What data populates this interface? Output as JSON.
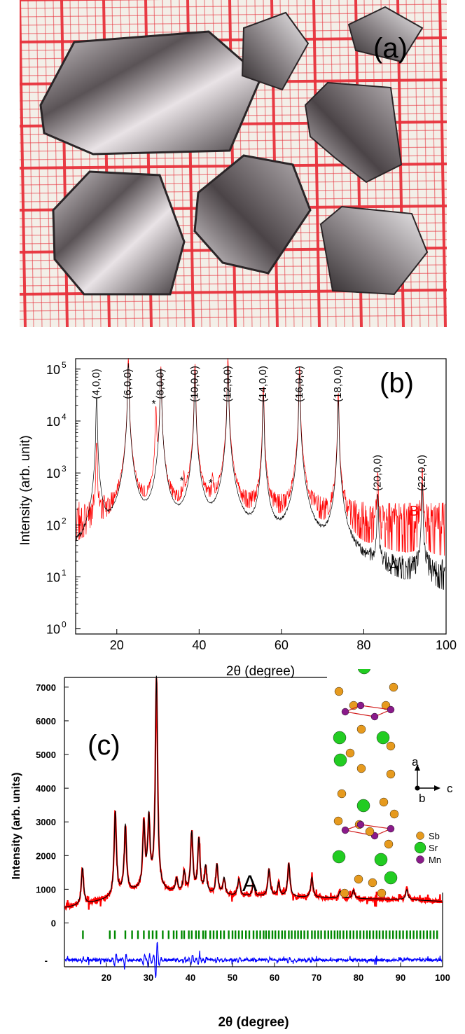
{
  "panel_a": {
    "label": "(a)",
    "description_colors": {
      "grid_line": "#e8323c",
      "paper": "#f4efe6",
      "crystal_dark": "#3a3436",
      "crystal_light": "#d9d4d6"
    }
  },
  "chart_data": [
    {
      "type": "line",
      "panel_label": "(b)",
      "xlabel": "2θ (degree)",
      "ylabel": "Intensity (arb. unit)",
      "xlim": [
        10,
        100
      ],
      "ylim_log10": [
        -0.1,
        5.2
      ],
      "yscale": "log",
      "x_ticks": [
        20,
        40,
        60,
        80,
        100
      ],
      "y_ticks": [
        {
          "exp": 0,
          "label": "10",
          "sup": "0"
        },
        {
          "exp": 1,
          "label": "10",
          "sup": "1"
        },
        {
          "exp": 2,
          "label": "10",
          "sup": "2"
        },
        {
          "exp": 3,
          "label": "10",
          "sup": "3"
        },
        {
          "exp": 4,
          "label": "10",
          "sup": "4"
        },
        {
          "exp": 5,
          "label": "10",
          "sup": "5"
        }
      ],
      "series": [
        {
          "name": "B",
          "color": "#ff0000",
          "baseline": 150,
          "noise_floor": 20,
          "peaks": [
            {
              "x": 15.1,
              "y": 3000
            },
            {
              "x": 22.8,
              "y": 130000
            },
            {
              "x": 29.5,
              "y": 15000
            },
            {
              "x": 30.7,
              "y": 90000
            },
            {
              "x": 36.3,
              "y": 500
            },
            {
              "x": 39.0,
              "y": 100000
            },
            {
              "x": 43.3,
              "y": 450
            },
            {
              "x": 47.0,
              "y": 130000
            },
            {
              "x": 55.6,
              "y": 38000
            },
            {
              "x": 64.4,
              "y": 90000
            },
            {
              "x": 73.8,
              "y": 28000
            },
            {
              "x": 83.4,
              "y": 750
            },
            {
              "x": 94.2,
              "y": 850
            }
          ]
        },
        {
          "name": "A",
          "color": "#000000",
          "baseline": 10,
          "noise_floor": 0.9,
          "peaks": [
            {
              "x": 15.1,
              "y": 22000
            },
            {
              "x": 22.8,
              "y": 100000
            },
            {
              "x": 30.7,
              "y": 80000
            },
            {
              "x": 39.0,
              "y": 70000
            },
            {
              "x": 47.0,
              "y": 90000
            },
            {
              "x": 55.6,
              "y": 25000
            },
            {
              "x": 64.4,
              "y": 60000
            },
            {
              "x": 73.8,
              "y": 20000
            },
            {
              "x": 83.4,
              "y": 300
            },
            {
              "x": 94.2,
              "y": 500
            }
          ]
        }
      ],
      "series_labels": [
        {
          "text": "B",
          "x": 94.5,
          "y": 150,
          "color": "#ff0000"
        },
        {
          "text": "A",
          "x": 89.5,
          "y": 13,
          "color": "#000000"
        }
      ],
      "annotations": [
        {
          "text": "(4,0,0)",
          "x": 15.1
        },
        {
          "text": "(6,0,0)",
          "x": 22.8
        },
        {
          "text": "(8,0,0)",
          "x": 30.7
        },
        {
          "text": "(10,0,0)",
          "x": 39.0
        },
        {
          "text": "(12,0,0)",
          "x": 47.0
        },
        {
          "text": "(14,0,0)",
          "x": 55.6
        },
        {
          "text": "(16,0,0)",
          "x": 64.4
        },
        {
          "text": "(18,0,0)",
          "x": 73.8
        },
        {
          "text": "(20,0,0)",
          "x": 83.4
        },
        {
          "text": "(22,0,0)",
          "x": 94.2
        }
      ],
      "stars": [
        {
          "text": "*",
          "x": 29.5,
          "y": 15000
        },
        {
          "text": "*",
          "x": 36.3,
          "y": 500
        },
        {
          "text": "*",
          "x": 43.3,
          "y": 450
        }
      ]
    },
    {
      "type": "line",
      "panel_label": "(c)",
      "sample_label": "A",
      "xlabel": "2θ (degree)",
      "ylabel": "Intensity (arb. units)",
      "xlim": [
        10,
        100
      ],
      "ylim": [
        -1300,
        7600
      ],
      "x_ticks": [
        20,
        30,
        40,
        50,
        60,
        70,
        80,
        90,
        100
      ],
      "y_ticks": [
        {
          "v": 0,
          "label": "0"
        },
        {
          "v": 1000,
          "label": "1000"
        },
        {
          "v": 2000,
          "label": "2000"
        },
        {
          "v": 3000,
          "label": "3000"
        },
        {
          "v": 4000,
          "label": "4000"
        },
        {
          "v": 5000,
          "label": "5000"
        },
        {
          "v": 6000,
          "label": "6000"
        },
        {
          "v": 7000,
          "label": "7000"
        }
      ],
      "blank_tick": {
        "v": -1100,
        "label": "-"
      },
      "observed_color": "#ff0000",
      "calculated_color": "#000000",
      "difference_color": "#0000ff",
      "bragg_color": "#008800",
      "background": [
        [
          10,
          450
        ],
        [
          15,
          550
        ],
        [
          20,
          700
        ],
        [
          25,
          900
        ],
        [
          30,
          1000
        ],
        [
          35,
          900
        ],
        [
          40,
          850
        ],
        [
          50,
          800
        ],
        [
          60,
          780
        ],
        [
          70,
          750
        ],
        [
          80,
          720
        ],
        [
          90,
          700
        ],
        [
          100,
          640
        ]
      ],
      "peaks": [
        {
          "x": 14.3,
          "y": 1100
        },
        {
          "x": 22.1,
          "y": 2500
        },
        {
          "x": 24.5,
          "y": 2000
        },
        {
          "x": 28.9,
          "y": 1900
        },
        {
          "x": 30.1,
          "y": 2000
        },
        {
          "x": 31.9,
          "y": 6300
        },
        {
          "x": 36.7,
          "y": 400
        },
        {
          "x": 38.5,
          "y": 600
        },
        {
          "x": 40.3,
          "y": 1800
        },
        {
          "x": 42.0,
          "y": 1600
        },
        {
          "x": 43.6,
          "y": 800
        },
        {
          "x": 46.3,
          "y": 900
        },
        {
          "x": 48.0,
          "y": 500
        },
        {
          "x": 51.5,
          "y": 500
        },
        {
          "x": 55.0,
          "y": 350
        },
        {
          "x": 58.7,
          "y": 800
        },
        {
          "x": 61.0,
          "y": 400
        },
        {
          "x": 63.4,
          "y": 1000
        },
        {
          "x": 68.9,
          "y": 600
        },
        {
          "x": 75.6,
          "y": 200
        },
        {
          "x": 78.8,
          "y": 250
        },
        {
          "x": 91.5,
          "y": 300
        }
      ],
      "bragg_y": -350,
      "bragg_ticks": [
        14.4,
        20.8,
        22.0,
        24.5,
        26.1,
        27.5,
        28.9,
        30.1,
        31.0,
        31.9,
        33.4,
        34.8,
        36.0,
        36.7,
        37.9,
        38.5,
        39.6,
        40.3,
        41.3,
        42.0,
        43.0,
        43.6,
        44.7,
        45.5,
        46.3,
        47.2,
        48.0,
        49.1,
        50.0,
        50.7,
        51.5,
        52.3,
        53.2,
        54.0,
        55.0,
        55.8,
        56.6,
        57.4,
        58.0,
        58.7,
        59.5,
        60.2,
        61.0,
        61.8,
        62.5,
        63.4,
        64.1,
        64.9,
        65.6,
        66.3,
        67.1,
        67.9,
        68.9,
        69.6,
        70.4,
        71.1,
        72.0,
        72.8,
        73.5,
        74.3,
        75.0,
        75.6,
        76.4,
        77.2,
        78.0,
        78.8,
        79.6,
        80.4,
        81.2,
        82.0,
        82.7,
        83.5,
        84.3,
        85.0,
        85.8,
        86.6,
        87.4,
        88.2,
        89.0,
        89.8,
        90.6,
        91.5,
        92.3,
        93.1,
        93.9,
        94.7,
        95.5,
        96.3,
        97.1,
        97.9,
        98.7
      ],
      "difference_baseline": -1100,
      "inset": {
        "axis_a": "a",
        "axis_b": "b",
        "axis_c": "c",
        "legend": [
          {
            "label": "Sb",
            "color": "#e69a1e"
          },
          {
            "label": "Sr",
            "color": "#22cc22"
          },
          {
            "label": "Mn",
            "color": "#8a1a8a"
          }
        ]
      }
    }
  ]
}
